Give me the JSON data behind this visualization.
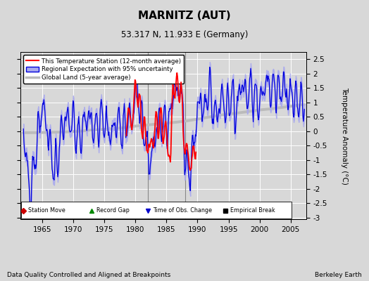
{
  "title": "MARNITZ (AUT)",
  "subtitle": "53.317 N, 11.933 E (Germany)",
  "ylabel": "Temperature Anomaly (°C)",
  "xlabel_note": "Data Quality Controlled and Aligned at Breakpoints",
  "credit": "Berkeley Earth",
  "xlim": [
    1961.5,
    2007.5
  ],
  "ylim": [
    -3.05,
    2.75
  ],
  "yticks": [
    -3,
    -2.5,
    -2,
    -1.5,
    -1,
    -0.5,
    0,
    0.5,
    1,
    1.5,
    2,
    2.5
  ],
  "ytick_labels": [
    "-3",
    "-2.5",
    "-2",
    "-1.5",
    "-1",
    "-0.5",
    "0",
    "0.5",
    "1",
    "1.5",
    "2",
    "2.5"
  ],
  "xticks": [
    1965,
    1970,
    1975,
    1980,
    1985,
    1990,
    1995,
    2000,
    2005
  ],
  "bg_color": "#d8d8d8",
  "plot_bg_color": "#d8d8d8",
  "empirical_breaks": [
    1982.0,
    1988.0
  ],
  "red_line_color": "#ff0000",
  "blue_line_color": "#0000dd",
  "blue_fill_color": "#aaaaee",
  "gray_line_color": "#bbbbbb",
  "legend_line_items": [
    {
      "label": "This Temperature Station (12-month average)",
      "color": "#ff0000",
      "lw": 1.5
    },
    {
      "label": "Regional Expectation with 95% uncertainty",
      "color": "#0000dd",
      "fill": "#aaaaee"
    },
    {
      "label": "Global Land (5-year average)",
      "color": "#bbbbbb",
      "lw": 2.5
    }
  ],
  "marker_legend": [
    {
      "label": "Station Move",
      "marker": "D",
      "color": "#cc0000"
    },
    {
      "label": "Record Gap",
      "marker": "^",
      "color": "#008800"
    },
    {
      "label": "Time of Obs. Change",
      "marker": "v",
      "color": "#0000cc"
    },
    {
      "label": "Empirical Break",
      "marker": "s",
      "color": "#000000"
    }
  ]
}
